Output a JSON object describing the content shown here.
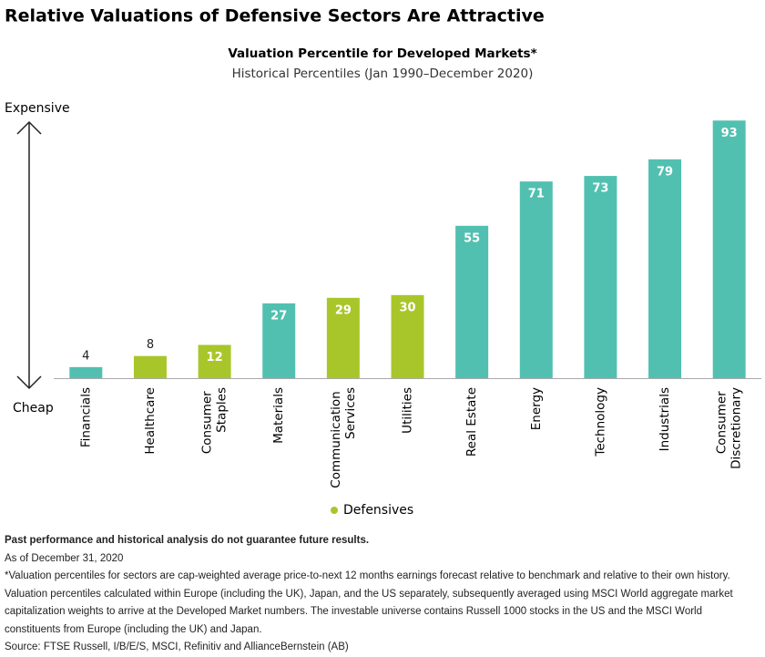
{
  "chart_data": {
    "type": "bar",
    "title": "Relative Valuations of Defensive Sectors Are Attractive",
    "subtitle": "Valuation Percentile for Developed Markets*",
    "subtitle2": "Historical Percentiles (Jan 1990–December 2020)",
    "y_top_label": "Expensive",
    "y_bottom_label": "Cheap",
    "categories": [
      "Financials",
      "Healthcare",
      "Consumer Staples",
      "Materials",
      "Communication Services",
      "Utilities",
      "Real Estate",
      "Energy",
      "Technology",
      "Industrials",
      "Consumer Discretionary"
    ],
    "values": [
      4,
      8,
      12,
      27,
      29,
      30,
      55,
      71,
      73,
      79,
      93
    ],
    "colors": [
      "#52c0b0",
      "#a8c62a",
      "#a8c62a",
      "#52c0b0",
      "#a8c62a",
      "#a8c62a",
      "#52c0b0",
      "#52c0b0",
      "#52c0b0",
      "#52c0b0",
      "#52c0b0"
    ],
    "legend": {
      "label": "Defensives",
      "color": "#a8c62a"
    },
    "ylim": [
      0,
      100
    ]
  },
  "notes": {
    "disclaimer": "Past performance and historical analysis do not guarantee future results.",
    "as_of": "As of December 31, 2020",
    "footnote": "*Valuation percentiles for sectors are cap-weighted average price-to-next 12 months earnings forecast relative to benchmark and relative to their own history. Valuation percentiles calculated within Europe (including the UK), Japan, and the US separately, subsequently averaged using MSCI World aggregate market capitalization weights to arrive at the Developed Market numbers.  The investable universe contains Russell 1000 stocks in the US and the MSCI World constituents from Europe (including the UK) and Japan.",
    "source": "Source: FTSE Russell, I/B/E/S, MSCI, Refinitiv and AllianceBernstein (AB)"
  }
}
